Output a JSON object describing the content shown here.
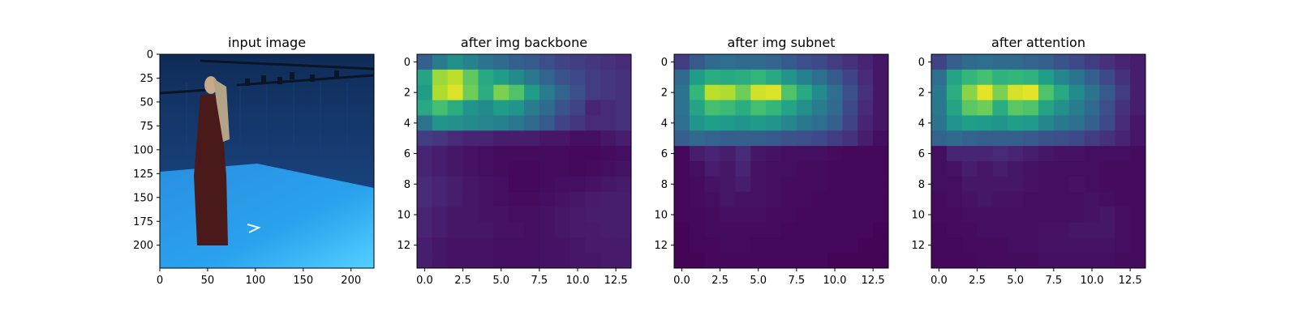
{
  "chart_data": [
    {
      "type": "image",
      "title": "input image",
      "xlim": [
        0,
        224
      ],
      "ylim": [
        224,
        0
      ],
      "xticks": [
        "0",
        "50",
        "100",
        "150",
        "200"
      ],
      "yticks": [
        "0",
        "25",
        "50",
        "75",
        "100",
        "125",
        "150",
        "175",
        "200"
      ],
      "colors": {
        "wall": "#1f4f92",
        "floor": "#2aa2ee",
        "figure": "#4a1a1a"
      }
    },
    {
      "type": "heatmap",
      "title": "after img backbone",
      "xlim": [
        -0.5,
        13.5
      ],
      "ylim": [
        13.5,
        -0.5
      ],
      "xticks": [
        "0.0",
        "2.5",
        "5.0",
        "7.5",
        "10.0",
        "12.5"
      ],
      "yticks": [
        "0",
        "2",
        "4",
        "6",
        "8",
        "10",
        "12"
      ],
      "colormap": "viridis",
      "values": [
        [
          0.3,
          0.42,
          0.5,
          0.45,
          0.38,
          0.34,
          0.3,
          0.28,
          0.24,
          0.2,
          0.18,
          0.16,
          0.14,
          0.12
        ],
        [
          0.58,
          0.85,
          0.9,
          0.75,
          0.6,
          0.55,
          0.48,
          0.4,
          0.32,
          0.26,
          0.22,
          0.18,
          0.16,
          0.14
        ],
        [
          0.55,
          0.88,
          0.95,
          0.78,
          0.62,
          0.8,
          0.72,
          0.55,
          0.42,
          0.32,
          0.24,
          0.18,
          0.16,
          0.14
        ],
        [
          0.6,
          0.7,
          0.62,
          0.52,
          0.48,
          0.55,
          0.52,
          0.42,
          0.34,
          0.26,
          0.2,
          0.1,
          0.12,
          0.14
        ],
        [
          0.38,
          0.52,
          0.5,
          0.48,
          0.46,
          0.44,
          0.4,
          0.34,
          0.28,
          0.2,
          0.16,
          0.12,
          0.12,
          0.14
        ],
        [
          0.18,
          0.16,
          0.12,
          0.1,
          0.1,
          0.08,
          0.08,
          0.08,
          0.06,
          0.06,
          0.04,
          0.04,
          0.06,
          0.08
        ],
        [
          0.1,
          0.08,
          0.06,
          0.05,
          0.04,
          0.03,
          0.03,
          0.03,
          0.03,
          0.03,
          0.02,
          0.02,
          0.03,
          0.04
        ],
        [
          0.1,
          0.08,
          0.06,
          0.05,
          0.04,
          0.03,
          0.02,
          0.02,
          0.03,
          0.03,
          0.02,
          0.03,
          0.04,
          0.05
        ],
        [
          0.12,
          0.1,
          0.08,
          0.06,
          0.05,
          0.04,
          0.02,
          0.02,
          0.03,
          0.04,
          0.04,
          0.05,
          0.06,
          0.07
        ],
        [
          0.12,
          0.1,
          0.08,
          0.06,
          0.05,
          0.04,
          0.03,
          0.03,
          0.04,
          0.05,
          0.06,
          0.07,
          0.08,
          0.08
        ],
        [
          0.1,
          0.08,
          0.06,
          0.06,
          0.05,
          0.05,
          0.04,
          0.04,
          0.05,
          0.06,
          0.07,
          0.08,
          0.08,
          0.08
        ],
        [
          0.1,
          0.08,
          0.06,
          0.06,
          0.06,
          0.05,
          0.05,
          0.04,
          0.05,
          0.06,
          0.07,
          0.07,
          0.08,
          0.08
        ],
        [
          0.08,
          0.06,
          0.05,
          0.05,
          0.05,
          0.04,
          0.04,
          0.04,
          0.05,
          0.05,
          0.06,
          0.07,
          0.07,
          0.07
        ],
        [
          0.08,
          0.06,
          0.05,
          0.05,
          0.05,
          0.04,
          0.04,
          0.04,
          0.05,
          0.05,
          0.06,
          0.06,
          0.07,
          0.07
        ]
      ]
    },
    {
      "type": "heatmap",
      "title": "after img subnet",
      "xlim": [
        -0.5,
        13.5
      ],
      "ylim": [
        13.5,
        -0.5
      ],
      "xticks": [
        "0.0",
        "2.5",
        "5.0",
        "7.5",
        "10.0",
        "12.5"
      ],
      "yticks": [
        "0",
        "2",
        "4",
        "6",
        "8",
        "10",
        "12"
      ],
      "colormap": "viridis",
      "values": [
        [
          0.18,
          0.28,
          0.34,
          0.36,
          0.34,
          0.34,
          0.32,
          0.28,
          0.24,
          0.22,
          0.18,
          0.14,
          0.1,
          0.06
        ],
        [
          0.34,
          0.55,
          0.62,
          0.6,
          0.62,
          0.66,
          0.6,
          0.52,
          0.44,
          0.36,
          0.28,
          0.2,
          0.12,
          0.06
        ],
        [
          0.38,
          0.66,
          0.9,
          0.88,
          0.78,
          0.93,
          0.95,
          0.72,
          0.6,
          0.48,
          0.36,
          0.24,
          0.14,
          0.06
        ],
        [
          0.38,
          0.58,
          0.7,
          0.68,
          0.62,
          0.7,
          0.66,
          0.58,
          0.5,
          0.42,
          0.34,
          0.22,
          0.12,
          0.06
        ],
        [
          0.36,
          0.52,
          0.56,
          0.54,
          0.52,
          0.54,
          0.52,
          0.46,
          0.4,
          0.36,
          0.3,
          0.2,
          0.1,
          0.06
        ],
        [
          0.3,
          0.34,
          0.32,
          0.3,
          0.3,
          0.3,
          0.28,
          0.26,
          0.24,
          0.22,
          0.18,
          0.14,
          0.08,
          0.04
        ],
        [
          0.02,
          0.08,
          0.1,
          0.08,
          0.12,
          0.06,
          0.05,
          0.04,
          0.04,
          0.04,
          0.03,
          0.02,
          0.02,
          0.02
        ],
        [
          0.02,
          0.04,
          0.08,
          0.06,
          0.1,
          0.05,
          0.04,
          0.04,
          0.03,
          0.03,
          0.02,
          0.02,
          0.02,
          0.02
        ],
        [
          0.02,
          0.03,
          0.05,
          0.06,
          0.08,
          0.05,
          0.04,
          0.03,
          0.03,
          0.03,
          0.02,
          0.02,
          0.02,
          0.02
        ],
        [
          0.02,
          0.03,
          0.04,
          0.06,
          0.05,
          0.05,
          0.04,
          0.03,
          0.03,
          0.02,
          0.02,
          0.02,
          0.02,
          0.02
        ],
        [
          0.02,
          0.02,
          0.03,
          0.04,
          0.04,
          0.04,
          0.03,
          0.03,
          0.02,
          0.02,
          0.02,
          0.02,
          0.02,
          0.02
        ],
        [
          0.01,
          0.02,
          0.03,
          0.03,
          0.03,
          0.03,
          0.03,
          0.02,
          0.02,
          0.02,
          0.02,
          0.02,
          0.02,
          0.01
        ],
        [
          0.01,
          0.02,
          0.02,
          0.03,
          0.03,
          0.02,
          0.02,
          0.02,
          0.02,
          0.02,
          0.02,
          0.02,
          0.01,
          0.01
        ],
        [
          0.01,
          0.01,
          0.02,
          0.02,
          0.02,
          0.02,
          0.02,
          0.02,
          0.02,
          0.02,
          0.01,
          0.01,
          0.01,
          0.01
        ]
      ]
    },
    {
      "type": "heatmap",
      "title": "after attention",
      "xlim": [
        -0.5,
        13.5
      ],
      "ylim": [
        13.5,
        -0.5
      ],
      "xticks": [
        "0.0",
        "2.5",
        "5.0",
        "7.5",
        "10.0",
        "12.5"
      ],
      "yticks": [
        "0",
        "2",
        "4",
        "6",
        "8",
        "10",
        "12"
      ],
      "colormap": "viridis",
      "values": [
        [
          0.2,
          0.3,
          0.34,
          0.36,
          0.34,
          0.34,
          0.32,
          0.3,
          0.26,
          0.22,
          0.18,
          0.14,
          0.1,
          0.08
        ],
        [
          0.36,
          0.58,
          0.66,
          0.7,
          0.64,
          0.66,
          0.64,
          0.56,
          0.46,
          0.38,
          0.3,
          0.22,
          0.14,
          0.08
        ],
        [
          0.4,
          0.62,
          0.82,
          0.96,
          0.8,
          0.94,
          0.96,
          0.72,
          0.6,
          0.48,
          0.38,
          0.28,
          0.18,
          0.08
        ],
        [
          0.4,
          0.58,
          0.74,
          0.78,
          0.62,
          0.74,
          0.72,
          0.58,
          0.5,
          0.42,
          0.34,
          0.24,
          0.14,
          0.08
        ],
        [
          0.38,
          0.52,
          0.56,
          0.54,
          0.52,
          0.56,
          0.54,
          0.46,
          0.4,
          0.36,
          0.3,
          0.22,
          0.12,
          0.06
        ],
        [
          0.32,
          0.34,
          0.32,
          0.3,
          0.3,
          0.3,
          0.28,
          0.26,
          0.24,
          0.22,
          0.18,
          0.14,
          0.1,
          0.06
        ],
        [
          0.04,
          0.1,
          0.1,
          0.1,
          0.12,
          0.1,
          0.08,
          0.06,
          0.05,
          0.05,
          0.04,
          0.04,
          0.04,
          0.03
        ],
        [
          0.04,
          0.05,
          0.08,
          0.06,
          0.08,
          0.06,
          0.05,
          0.04,
          0.04,
          0.04,
          0.04,
          0.03,
          0.03,
          0.03
        ],
        [
          0.04,
          0.04,
          0.06,
          0.06,
          0.06,
          0.06,
          0.05,
          0.04,
          0.04,
          0.05,
          0.04,
          0.03,
          0.03,
          0.03
        ],
        [
          0.03,
          0.04,
          0.05,
          0.06,
          0.05,
          0.05,
          0.04,
          0.04,
          0.04,
          0.04,
          0.05,
          0.04,
          0.03,
          0.03
        ],
        [
          0.03,
          0.03,
          0.04,
          0.04,
          0.04,
          0.04,
          0.04,
          0.04,
          0.04,
          0.04,
          0.05,
          0.06,
          0.04,
          0.03
        ],
        [
          0.02,
          0.03,
          0.03,
          0.04,
          0.04,
          0.04,
          0.04,
          0.05,
          0.05,
          0.06,
          0.06,
          0.06,
          0.04,
          0.03
        ],
        [
          0.02,
          0.02,
          0.03,
          0.03,
          0.03,
          0.04,
          0.04,
          0.05,
          0.05,
          0.05,
          0.05,
          0.05,
          0.04,
          0.03
        ],
        [
          0.02,
          0.02,
          0.02,
          0.03,
          0.03,
          0.03,
          0.03,
          0.04,
          0.04,
          0.04,
          0.04,
          0.04,
          0.03,
          0.03
        ]
      ]
    }
  ]
}
